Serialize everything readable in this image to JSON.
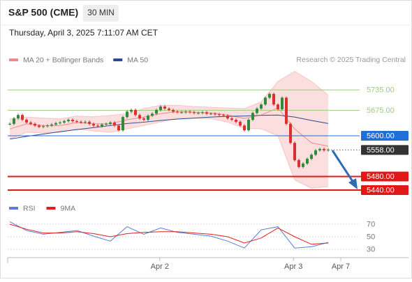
{
  "header": {
    "symbol": "S&P 500 (CME)",
    "interval": "30 MIN",
    "timestamp": "Thursday, April 3, 2025 7:11:07 AM CET",
    "credit": "Research © 2025 Trading Central"
  },
  "chart_data": [
    {
      "type": "candlestick",
      "closes": [
        5635,
        5651,
        5661,
        5647,
        5639,
        5635,
        5630,
        5626,
        5628,
        5630,
        5633,
        5637,
        5639,
        5643,
        5647,
        5643,
        5641,
        5639,
        5641,
        5635,
        5630,
        5628,
        5633,
        5635,
        5639,
        5630,
        5616,
        5655,
        5671,
        5676,
        5661,
        5651,
        5647,
        5659,
        5665,
        5676,
        5686,
        5680,
        5676,
        5671,
        5669,
        5669,
        5671,
        5669,
        5667,
        5667,
        5669,
        5665,
        5665,
        5663,
        5661,
        5659,
        5651,
        5647,
        5641,
        5630,
        5616,
        5647,
        5667,
        5680,
        5692,
        5712,
        5723,
        5692,
        5678,
        5712,
        5635,
        5579,
        5528,
        5508,
        5518,
        5532,
        5544,
        5557,
        5561,
        5557,
        5559
      ],
      "up_color": "#2e8b3a",
      "down_color": "#d93030",
      "ylim": [
        5405,
        5805
      ],
      "overlays": [
        {
          "name": "MA 20 + Bollinger Bands",
          "color": "#f08a8a",
          "values": [
            5620,
            5635,
            5630,
            5630,
            5639,
            5635,
            5635,
            5647,
            5655,
            5665,
            5671,
            5669,
            5667,
            5661,
            5651,
            5661,
            5682,
            5620,
            5579,
            5569
          ],
          "upper": [
            5650,
            5655,
            5652,
            5650,
            5658,
            5656,
            5660,
            5665,
            5680,
            5690,
            5690,
            5686,
            5684,
            5682,
            5680,
            5700,
            5760,
            5790,
            5760,
            5720
          ],
          "lower": [
            5590,
            5610,
            5608,
            5610,
            5620,
            5614,
            5610,
            5620,
            5630,
            5640,
            5652,
            5652,
            5650,
            5640,
            5622,
            5620,
            5600,
            5470,
            5445,
            5450
          ]
        },
        {
          "name": "MA 50",
          "color": "#2b4a8b",
          "values": [
            5590,
            5598,
            5605,
            5612,
            5618,
            5624,
            5630,
            5636,
            5640,
            5645,
            5649,
            5652,
            5655,
            5657,
            5658,
            5660,
            5661,
            5655,
            5645,
            5636
          ]
        }
      ],
      "levels": [
        {
          "value": 5735,
          "label": "5735.00",
          "color": "#9ccc7e",
          "boxed": false,
          "line": "solid"
        },
        {
          "value": 5675,
          "label": "5675.00",
          "color": "#9ccc7e",
          "boxed": false,
          "line": "solid"
        },
        {
          "value": 5600,
          "label": "5600.00",
          "color": "#1f6fd6",
          "boxed": true,
          "line": "solid"
        },
        {
          "value": 5558,
          "label": "5558.00",
          "color": "#333333",
          "boxed": true,
          "line": "dotted"
        },
        {
          "value": 5480,
          "label": "5480.00",
          "color": "#e01818",
          "boxed": true,
          "line": "thick"
        },
        {
          "value": 5440,
          "label": "5440.00",
          "color": "#e01818",
          "boxed": true,
          "line": "thick"
        }
      ],
      "xticks": [
        {
          "value": 35.8,
          "label": "Apr 2"
        },
        {
          "value": 67.7,
          "label": "Apr 3"
        },
        {
          "value": 79,
          "label": "Apr 7"
        }
      ]
    },
    {
      "type": "line",
      "series": [
        {
          "name": "RSI",
          "color": "#5b7fd6",
          "values": [
            74,
            60,
            54,
            57,
            60,
            51,
            43,
            66,
            54,
            64,
            57,
            54,
            51,
            43,
            32,
            61,
            66,
            32,
            34,
            41
          ]
        },
        {
          "name": "9MA",
          "color": "#e02020",
          "values": [
            70,
            62,
            56,
            56,
            58,
            55,
            50,
            55,
            57,
            58,
            58,
            56,
            54,
            50,
            40,
            48,
            64,
            50,
            38,
            40
          ]
        }
      ],
      "ylim": [
        20,
        80
      ],
      "yticks": [
        30,
        50,
        70
      ]
    }
  ]
}
